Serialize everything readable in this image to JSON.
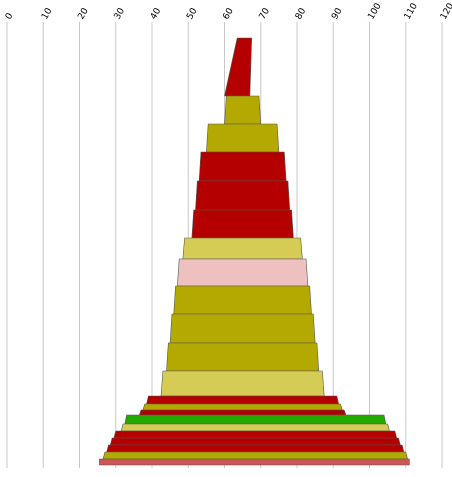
{
  "chart_data": {
    "type": "funnel",
    "title": "",
    "xlabel": "",
    "ylabel": "",
    "grid": true,
    "xlim": [
      0,
      120
    ],
    "ticks": [
      0,
      10,
      20,
      30,
      40,
      50,
      60,
      70,
      80,
      90,
      100,
      110,
      120
    ],
    "tick_labels": [
      "0",
      "10",
      "20",
      "30",
      "40",
      "50",
      "60",
      "70",
      "80",
      "90",
      "100",
      "110",
      "120"
    ],
    "colors": {
      "dark_red": "#b50000",
      "olive": "#b3a900",
      "light_olive": "#d4cc55",
      "pink": "#efc0c0",
      "green": "#22aa00",
      "coral": "#cc5555"
    },
    "segments": [
      {
        "left": 61.5,
        "right": 66.5,
        "top_left": 63.5,
        "top_right": 67.5,
        "color": "dark_red"
      },
      {
        "left": 60.5,
        "right": 69.5,
        "color": "olive"
      },
      {
        "left": 55.5,
        "right": 74.5,
        "color": "olive"
      },
      {
        "left": 53.5,
        "right": 76.5,
        "color": "dark_red"
      },
      {
        "left": 52.5,
        "right": 77.5,
        "color": "dark_red"
      },
      {
        "left": 51.5,
        "right": 78.5,
        "color": "dark_red"
      },
      {
        "left": 49.0,
        "right": 81.0,
        "color": "light_olive"
      },
      {
        "left": 47.5,
        "right": 82.5,
        "color": "pink"
      },
      {
        "left": 46.5,
        "right": 83.5,
        "color": "olive"
      },
      {
        "left": 45.5,
        "right": 84.5,
        "color": "olive"
      },
      {
        "left": 44.5,
        "right": 85.5,
        "color": "olive"
      },
      {
        "left": 43.0,
        "right": 87.0,
        "color": "light_olive"
      },
      {
        "left": 39.0,
        "right": 91.0,
        "color": "dark_red"
      },
      {
        "left": 38.0,
        "right": 92.0,
        "color": "olive"
      },
      {
        "left": 37.0,
        "right": 93.0,
        "color": "dark_red"
      },
      {
        "left": 33.0,
        "right": 104.0,
        "color": "green"
      },
      {
        "left": 32.0,
        "right": 105.0,
        "color": "light_olive"
      },
      {
        "left": 30.0,
        "right": 107.0,
        "color": "dark_red"
      },
      {
        "left": 29.0,
        "right": 108.0,
        "color": "dark_red"
      },
      {
        "left": 28.0,
        "right": 109.0,
        "color": "dark_red"
      },
      {
        "left": 27.0,
        "right": 110.0,
        "color": "olive"
      },
      {
        "left": 25.5,
        "right": 111.0,
        "color": "coral"
      }
    ]
  }
}
